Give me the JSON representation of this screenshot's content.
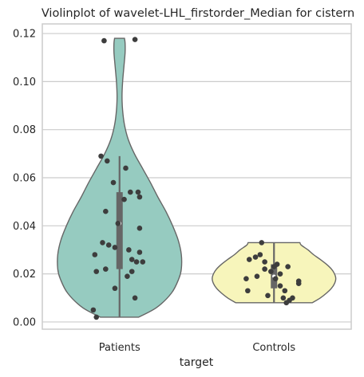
{
  "chart_data": {
    "type": "violin",
    "title": "Violinplot of wavelet-LHL_firstorder_Median for cistern",
    "xlabel": "target",
    "ylabel": "",
    "ylim": [
      -0.003,
      0.124
    ],
    "yticks": [
      0.0,
      0.02,
      0.04,
      0.06,
      0.08,
      0.1,
      0.12
    ],
    "ytick_labels": [
      "0.00",
      "0.02",
      "0.04",
      "0.06",
      "0.08",
      "0.10",
      "0.12"
    ],
    "grid": true,
    "categories": [
      "Patients",
      "Controls"
    ],
    "series": [
      {
        "category": "Patients",
        "color": "#96cbc0",
        "edge_color": "#666666",
        "violin_range": [
          0.002,
          0.118
        ],
        "median": 0.041,
        "quartiles": [
          0.022,
          0.054
        ],
        "whisker": [
          0.002,
          0.069
        ],
        "density_profile": [
          [
            0.002,
            0.31
          ],
          [
            0.006,
            0.6
          ],
          [
            0.012,
            0.84
          ],
          [
            0.018,
            0.96
          ],
          [
            0.022,
            1.0
          ],
          [
            0.028,
            1.0
          ],
          [
            0.034,
            0.95
          ],
          [
            0.04,
            0.86
          ],
          [
            0.046,
            0.75
          ],
          [
            0.052,
            0.62
          ],
          [
            0.058,
            0.5
          ],
          [
            0.064,
            0.37
          ],
          [
            0.07,
            0.24
          ],
          [
            0.076,
            0.14
          ],
          [
            0.082,
            0.08
          ],
          [
            0.088,
            0.05
          ],
          [
            0.094,
            0.04
          ],
          [
            0.1,
            0.05
          ],
          [
            0.106,
            0.07
          ],
          [
            0.112,
            0.09
          ],
          [
            0.116,
            0.09
          ],
          [
            0.118,
            0.08
          ]
        ],
        "points": [
          {
            "offset": -0.1,
            "value": 0.117
          },
          {
            "offset": 0.1,
            "value": 0.1175
          },
          {
            "offset": -0.12,
            "value": 0.069
          },
          {
            "offset": -0.08,
            "value": 0.067
          },
          {
            "offset": 0.04,
            "value": 0.064
          },
          {
            "offset": -0.04,
            "value": 0.058
          },
          {
            "offset": 0.07,
            "value": 0.054
          },
          {
            "offset": 0.12,
            "value": 0.054
          },
          {
            "offset": 0.13,
            "value": 0.052
          },
          {
            "offset": 0.03,
            "value": 0.051
          },
          {
            "offset": -0.09,
            "value": 0.046
          },
          {
            "offset": -0.01,
            "value": 0.041
          },
          {
            "offset": 0.13,
            "value": 0.039
          },
          {
            "offset": -0.11,
            "value": 0.033
          },
          {
            "offset": -0.07,
            "value": 0.032
          },
          {
            "offset": -0.03,
            "value": 0.031
          },
          {
            "offset": 0.06,
            "value": 0.03
          },
          {
            "offset": 0.13,
            "value": 0.029
          },
          {
            "offset": -0.16,
            "value": 0.028
          },
          {
            "offset": 0.08,
            "value": 0.026
          },
          {
            "offset": 0.11,
            "value": 0.025
          },
          {
            "offset": 0.15,
            "value": 0.025
          },
          {
            "offset": -0.09,
            "value": 0.022
          },
          {
            "offset": 0.08,
            "value": 0.021
          },
          {
            "offset": -0.15,
            "value": 0.021
          },
          {
            "offset": 0.05,
            "value": 0.019
          },
          {
            "offset": -0.03,
            "value": 0.014
          },
          {
            "offset": 0.1,
            "value": 0.01
          },
          {
            "offset": -0.17,
            "value": 0.005
          },
          {
            "offset": -0.15,
            "value": 0.002
          }
        ]
      },
      {
        "category": "Controls",
        "color": "#f7f5bb",
        "edge_color": "#666666",
        "violin_range": [
          0.008,
          0.033
        ],
        "median": 0.019,
        "quartiles": [
          0.014,
          0.024
        ],
        "whisker": [
          0.008,
          0.033
        ],
        "density_profile": [
          [
            0.008,
            0.62
          ],
          [
            0.01,
            0.75
          ],
          [
            0.012,
            0.85
          ],
          [
            0.014,
            0.93
          ],
          [
            0.016,
            0.98
          ],
          [
            0.018,
            1.0
          ],
          [
            0.02,
            0.98
          ],
          [
            0.022,
            0.93
          ],
          [
            0.024,
            0.85
          ],
          [
            0.026,
            0.75
          ],
          [
            0.028,
            0.64
          ],
          [
            0.03,
            0.55
          ],
          [
            0.032,
            0.44
          ],
          [
            0.033,
            0.42
          ]
        ],
        "points": [
          {
            "offset": -0.08,
            "value": 0.033
          },
          {
            "offset": -0.09,
            "value": 0.028
          },
          {
            "offset": -0.12,
            "value": 0.027
          },
          {
            "offset": -0.16,
            "value": 0.026
          },
          {
            "offset": -0.06,
            "value": 0.025
          },
          {
            "offset": 0.02,
            "value": 0.024
          },
          {
            "offset": 0.0,
            "value": 0.023
          },
          {
            "offset": 0.09,
            "value": 0.023
          },
          {
            "offset": -0.06,
            "value": 0.022
          },
          {
            "offset": -0.02,
            "value": 0.021
          },
          {
            "offset": 0.04,
            "value": 0.02
          },
          {
            "offset": -0.11,
            "value": 0.019
          },
          {
            "offset": -0.18,
            "value": 0.018
          },
          {
            "offset": 0.01,
            "value": 0.018
          },
          {
            "offset": 0.16,
            "value": 0.017
          },
          {
            "offset": 0.16,
            "value": 0.016
          },
          {
            "offset": 0.04,
            "value": 0.015
          },
          {
            "offset": -0.17,
            "value": 0.013
          },
          {
            "offset": 0.07,
            "value": 0.013
          },
          {
            "offset": -0.04,
            "value": 0.011
          },
          {
            "offset": 0.06,
            "value": 0.01
          },
          {
            "offset": 0.12,
            "value": 0.01
          },
          {
            "offset": 0.1,
            "value": 0.009
          },
          {
            "offset": 0.08,
            "value": 0.008
          }
        ]
      }
    ]
  }
}
